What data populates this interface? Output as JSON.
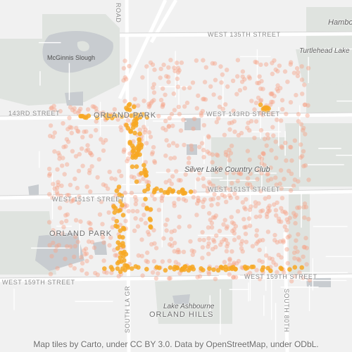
{
  "map": {
    "labels": {
      "road": "ROAD",
      "w135": "WEST 135TH STREET",
      "hamburg": "Hambo",
      "turtlehead": "Turtlehead Lake",
      "mcginnis": "McGinnis Slough",
      "st143": "143RD STREET",
      "orland_park_top": "ORLAND PARK",
      "w143": "WEST 143RD STREET",
      "silver_lake": "Silver Lake Country Club",
      "w151_right": "WEST 151ST STREET",
      "w151_left": "WEST 151ST STREET",
      "orland_park_mid": "ORLAND PARK",
      "w159_left": "WEST 159TH STREET",
      "w159_right": "WEST 159TH STREET",
      "south_lagrange": "SOUTH LA GR",
      "lake_ashbourne": "Lake Ashbourne",
      "orland_hills": "ORLAND HILLS",
      "south_80th": "SOUTH 80TH"
    },
    "attribution": "Map tiles by Carto, under CC BY 3.0. Data by OpenStreetMap, under ODbL.",
    "colors": {
      "background": "#f1f1f1",
      "park": "#dfe4df",
      "water": "#c9cdd1",
      "road": "#ffffff",
      "density_low": "#f6a48a",
      "density_high": "#f7a823"
    }
  }
}
